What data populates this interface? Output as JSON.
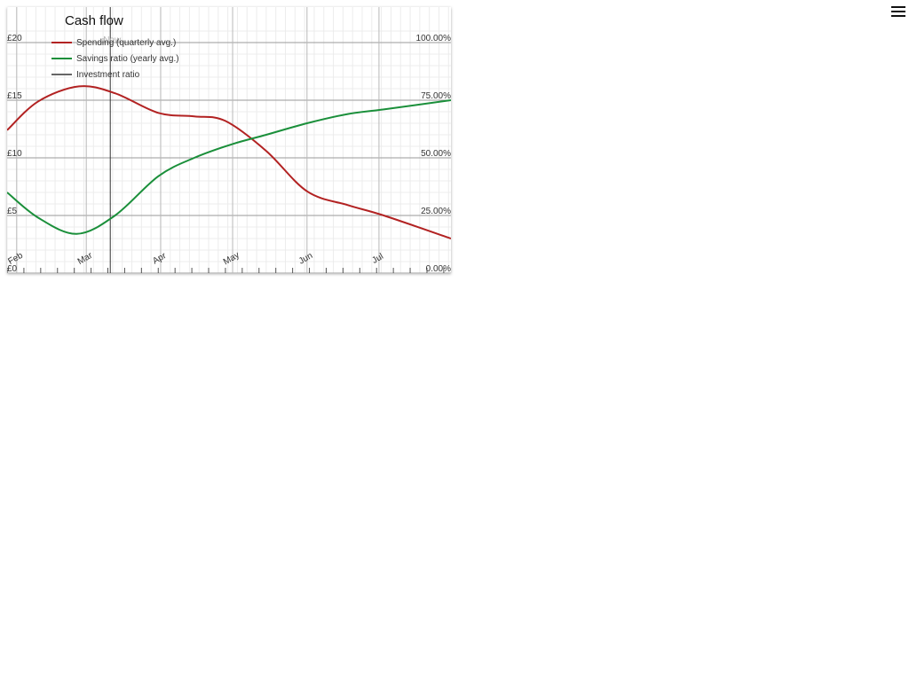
{
  "page": {
    "menu_icon": "hamburger-menu-icon"
  },
  "chart_data": {
    "type": "line",
    "title": "Cash flow",
    "grid": true,
    "legend_placement": "top-left",
    "now_marker": {
      "label": "Now",
      "x": "2024-03-11"
    },
    "x_axis": {
      "type": "date",
      "range": [
        "2024-01-28",
        "2024-07-31"
      ],
      "tick_labels": [
        {
          "label": "Feb",
          "x": "2024-02-01"
        },
        {
          "label": "Mar",
          "x": "2024-03-01"
        },
        {
          "label": "Apr",
          "x": "2024-04-01"
        },
        {
          "label": "May",
          "x": "2024-05-01"
        },
        {
          "label": "Jun",
          "x": "2024-06-01"
        },
        {
          "label": "Jul",
          "x": "2024-07-01"
        }
      ]
    },
    "y_axis_left": {
      "range": [
        0,
        20
      ],
      "ticks": [
        0,
        5,
        10,
        15,
        20
      ],
      "tick_labels": [
        "£0",
        "£5",
        "£10",
        "£15",
        "£20"
      ]
    },
    "y_axis_right": {
      "range": [
        0,
        100
      ],
      "ticks": [
        0,
        25,
        50,
        75,
        100
      ],
      "tick_labels": [
        "0.00%",
        "25.00%",
        "50.00%",
        "75.00%",
        "100.00%"
      ]
    },
    "series": [
      {
        "name": "Spending (quarterly avg.)",
        "axis": "left",
        "color": "#b22222",
        "points": [
          [
            "2024-01-28",
            12.4
          ],
          [
            "2024-02-10",
            14.9
          ],
          [
            "2024-02-27",
            16.2
          ],
          [
            "2024-03-13",
            15.6
          ],
          [
            "2024-03-31",
            13.9
          ],
          [
            "2024-04-15",
            13.6
          ],
          [
            "2024-04-28",
            13.2
          ],
          [
            "2024-05-15",
            10.6
          ],
          [
            "2024-06-01",
            7.1
          ],
          [
            "2024-06-18",
            5.9
          ],
          [
            "2024-07-03",
            5.0
          ],
          [
            "2024-07-31",
            3.0
          ]
        ]
      },
      {
        "name": "Savings ratio (yearly avg.)",
        "axis": "right",
        "color": "#1a8f3a",
        "points": [
          [
            "2024-01-28",
            35
          ],
          [
            "2024-02-10",
            24
          ],
          [
            "2024-02-26",
            17
          ],
          [
            "2024-03-13",
            25
          ],
          [
            "2024-03-31",
            42
          ],
          [
            "2024-04-15",
            50
          ],
          [
            "2024-05-01",
            56
          ],
          [
            "2024-05-15",
            60
          ],
          [
            "2024-06-01",
            65
          ],
          [
            "2024-06-18",
            69
          ],
          [
            "2024-07-03",
            71
          ],
          [
            "2024-07-31",
            75
          ]
        ]
      },
      {
        "name": "Investment ratio",
        "axis": "right",
        "color": "#666666",
        "points": []
      }
    ]
  }
}
